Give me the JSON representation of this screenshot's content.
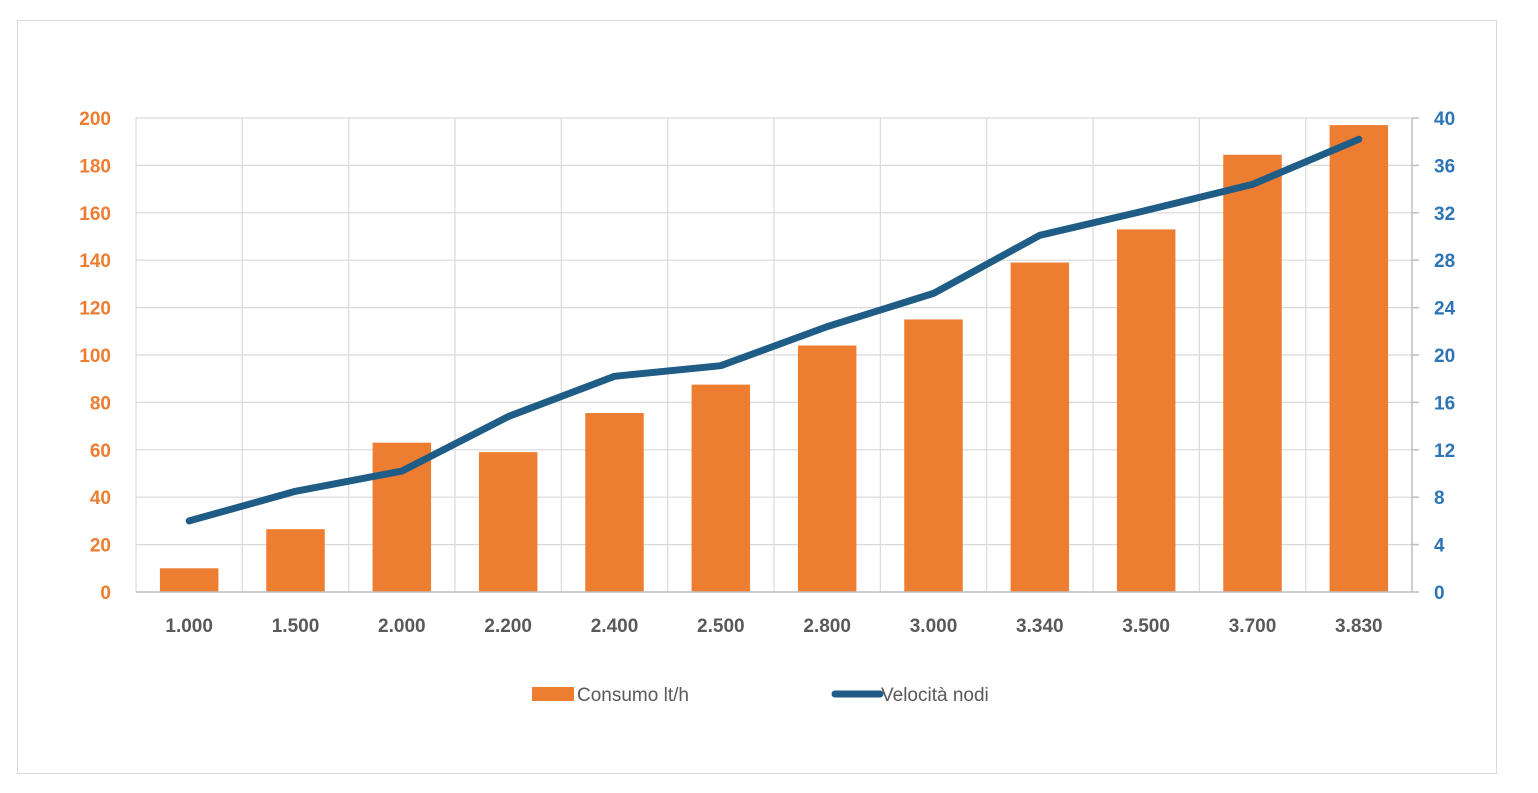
{
  "chart_data": {
    "type": "bar+line",
    "title": "",
    "categories": [
      "1.000",
      "1.500",
      "2.000",
      "2.200",
      "2.400",
      "2.500",
      "2.800",
      "3.000",
      "3.340",
      "3.500",
      "3.700",
      "3.830"
    ],
    "series": [
      {
        "name": "Consumo lt/h",
        "type": "bar",
        "axis": "left",
        "color": "#ED7D31",
        "values": [
          10,
          26.5,
          63,
          59,
          75.5,
          87.5,
          104,
          115,
          139,
          153,
          184.5,
          197
        ]
      },
      {
        "name": "Velocità nodi",
        "type": "line",
        "axis": "right",
        "color": "#1F5C86",
        "values": [
          6,
          8.5,
          10.2,
          14.8,
          18.2,
          19.1,
          22.4,
          25.2,
          30.1,
          32.2,
          34.4,
          38.2
        ]
      }
    ],
    "left_axis": {
      "min": 0,
      "max": 200,
      "ticks": [
        "0",
        "20",
        "40",
        "60",
        "80",
        "100",
        "120",
        "140",
        "160",
        "180",
        "200"
      ],
      "color": "#ED7D31"
    },
    "right_axis": {
      "min": 0,
      "max": 40,
      "ticks": [
        "0",
        "4",
        "8",
        "12",
        "16",
        "20",
        "24",
        "28",
        "32",
        "36",
        "40"
      ],
      "color": "#2E75B6"
    },
    "grid": true,
    "legend_position": "bottom-center"
  }
}
